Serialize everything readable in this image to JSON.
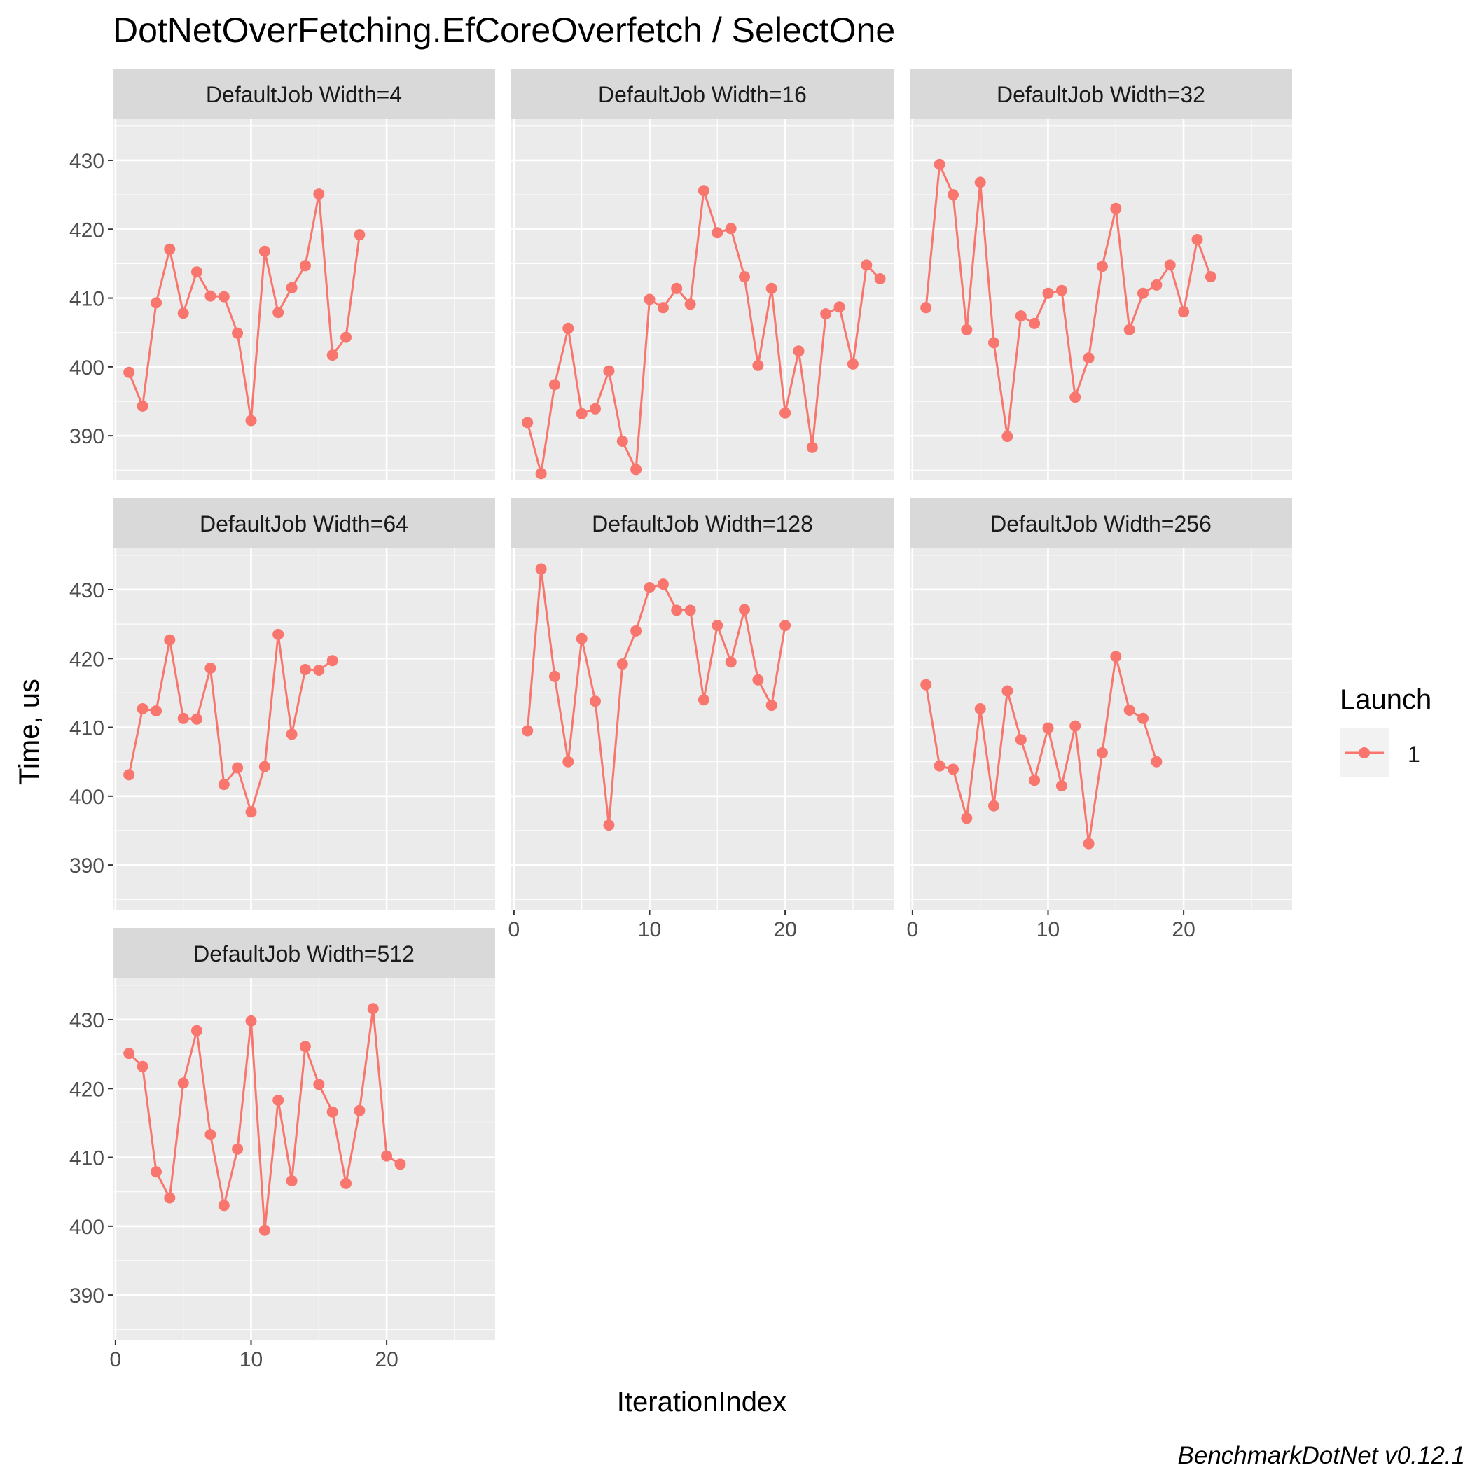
{
  "chart_data": {
    "type": "line",
    "title": "DotNetOverFetching.EfCoreOverfetch / SelectOne",
    "xlabel": "IterationIndex",
    "ylabel": "Time, us",
    "footer": "BenchmarkDotNet v0.12.1",
    "xlim": [
      -0.2,
      28
    ],
    "ylim": [
      383.5,
      436
    ],
    "x_ticks": [
      0,
      10,
      20
    ],
    "y_ticks": [
      390,
      400,
      410,
      420,
      430
    ],
    "grid": true,
    "legend": {
      "title": "Launch",
      "placement": "right",
      "entries": [
        "1"
      ]
    },
    "colors": {
      "series": "#f8766d",
      "panel_bg": "#ebebeb",
      "strip_bg": "#d9d9d9",
      "grid": "#ffffff",
      "text": "#1a1a1a",
      "axis_text": "#4d4d4d"
    },
    "panels": [
      {
        "label": "DefaultJob Width=4",
        "series": [
          {
            "name": "1",
            "values": [
              399.2,
              394.3,
              409.3,
              417.1,
              407.8,
              413.8,
              410.3,
              410.2,
              404.9,
              392.2,
              416.8,
              407.9,
              411.5,
              414.7,
              425.1,
              401.7,
              404.3,
              419.2
            ]
          }
        ]
      },
      {
        "label": "DefaultJob Width=16",
        "series": [
          {
            "name": "1",
            "values": [
              391.9,
              384.5,
              397.4,
              405.6,
              393.2,
              393.9,
              399.4,
              389.2,
              385.1,
              409.8,
              408.6,
              411.4,
              409.1,
              425.6,
              419.5,
              420.1,
              413.1,
              400.2,
              411.4,
              393.3,
              402.3,
              388.3,
              407.7,
              408.7,
              400.4,
              414.8,
              412.8
            ]
          }
        ]
      },
      {
        "label": "DefaultJob Width=32",
        "series": [
          {
            "name": "1",
            "values": [
              408.6,
              429.4,
              425.0,
              405.4,
              426.8,
              403.5,
              389.9,
              407.4,
              406.3,
              410.7,
              411.1,
              395.6,
              401.3,
              414.6,
              423.0,
              405.4,
              410.7,
              411.9,
              414.8,
              408.0,
              418.5,
              413.1
            ]
          }
        ]
      },
      {
        "label": "DefaultJob Width=64",
        "series": [
          {
            "name": "1",
            "values": [
              403.1,
              412.7,
              412.4,
              422.7,
              411.3,
              411.2,
              418.6,
              401.7,
              404.1,
              397.7,
              404.3,
              423.5,
              409.0,
              418.4,
              418.3,
              419.7
            ]
          }
        ]
      },
      {
        "label": "DefaultJob Width=128",
        "series": [
          {
            "name": "1",
            "values": [
              409.5,
              433.0,
              417.4,
              405.0,
              422.9,
              413.8,
              395.8,
              419.2,
              424.0,
              430.3,
              430.8,
              427.0,
              427.0,
              414.0,
              424.8,
              419.5,
              427.1,
              416.9,
              413.2,
              424.8
            ]
          }
        ]
      },
      {
        "label": "DefaultJob Width=256",
        "series": [
          {
            "name": "1",
            "values": [
              416.2,
              404.4,
              403.9,
              396.8,
              412.7,
              398.6,
              415.3,
              408.2,
              402.3,
              409.9,
              401.5,
              410.2,
              393.1,
              406.3,
              420.3,
              412.5,
              411.3,
              405.0
            ]
          }
        ]
      },
      {
        "label": "DefaultJob Width=512",
        "series": [
          {
            "name": "1",
            "values": [
              425.1,
              423.2,
              407.9,
              404.1,
              420.8,
              428.4,
              413.3,
              403.0,
              411.2,
              429.8,
              399.4,
              418.3,
              406.6,
              426.1,
              420.6,
              416.6,
              406.2,
              416.8,
              431.6,
              410.2,
              409.0
            ]
          }
        ]
      }
    ]
  }
}
